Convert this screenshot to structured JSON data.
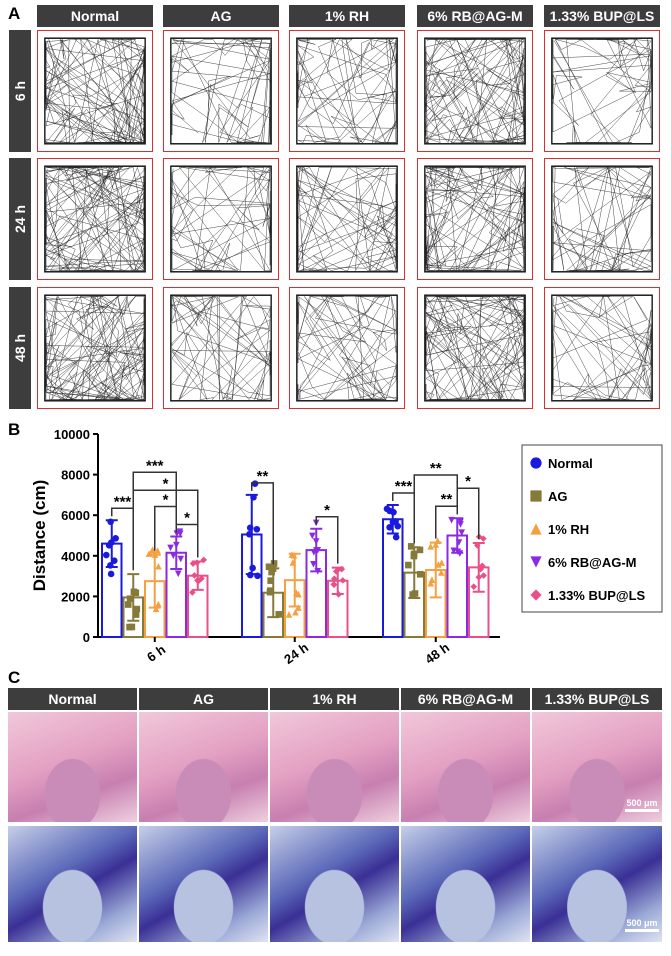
{
  "panels": {
    "a": "A",
    "b": "B",
    "c": "C"
  },
  "groups": [
    "Normal",
    "AG",
    "1% RH",
    "6% RB@AG-M",
    "1.33% BUP@LS"
  ],
  "times": [
    "6 h",
    "24 h",
    "48 h"
  ],
  "scale_bar": "500 μm",
  "chart_data": {
    "type": "bar",
    "categories": [
      "6 h",
      "24 h",
      "48 h"
    ],
    "ylabel": "Distance (cm)",
    "ylim": [
      0,
      10000
    ],
    "yticks": [
      "0",
      "2000",
      "4000",
      "6000",
      "8000",
      "10000"
    ],
    "legend_placement": "right",
    "series": [
      {
        "name": "Normal",
        "color": "#1a1adc",
        "marker": "circle",
        "values": [
          4600,
          5050,
          5800
        ],
        "sd": [
          1150,
          1950,
          700
        ]
      },
      {
        "name": "AG",
        "color": "#857a3a",
        "marker": "square",
        "values": [
          1950,
          2180,
          3170
        ],
        "sd": [
          1150,
          1200,
          1250
        ]
      },
      {
        "name": "1% RH",
        "color": "#f5a040",
        "marker": "triangle-up",
        "values": [
          2750,
          2800,
          3300
        ],
        "sd": [
          1300,
          1300,
          1350
        ]
      },
      {
        "name": "6% RB@AG-M",
        "color": "#8a2be2",
        "marker": "triangle-down",
        "values": [
          4150,
          4280,
          5000
        ],
        "sd": [
          800,
          1050,
          850
        ]
      },
      {
        "name": "1.33% BUP@LS",
        "color": "#e8508a",
        "marker": "diamond",
        "values": [
          3020,
          2770,
          3430
        ],
        "sd": [
          700,
          650,
          1200
        ]
      }
    ],
    "significance": [
      {
        "time": "6 h",
        "a": 0,
        "b": 1,
        "label": "***"
      },
      {
        "time": "6 h",
        "a": 1,
        "b": 4,
        "label": "*"
      },
      {
        "time": "6 h",
        "a": 1,
        "b": 3,
        "label": "***"
      },
      {
        "time": "6 h",
        "a": 3,
        "b": 4,
        "label": "*"
      },
      {
        "time": "6 h",
        "a": 2,
        "b": 3,
        "label": "*"
      },
      {
        "time": "24 h",
        "a": 0,
        "b": 1,
        "label": "**"
      },
      {
        "time": "24 h",
        "a": 3,
        "b": 4,
        "label": "*"
      },
      {
        "time": "48 h",
        "a": 0,
        "b": 1,
        "label": "***"
      },
      {
        "time": "48 h",
        "a": 1,
        "b": 3,
        "label": "**"
      },
      {
        "time": "48 h",
        "a": 2,
        "b": 3,
        "label": "**"
      },
      {
        "time": "48 h",
        "a": 3,
        "b": 4,
        "label": "*"
      }
    ]
  }
}
